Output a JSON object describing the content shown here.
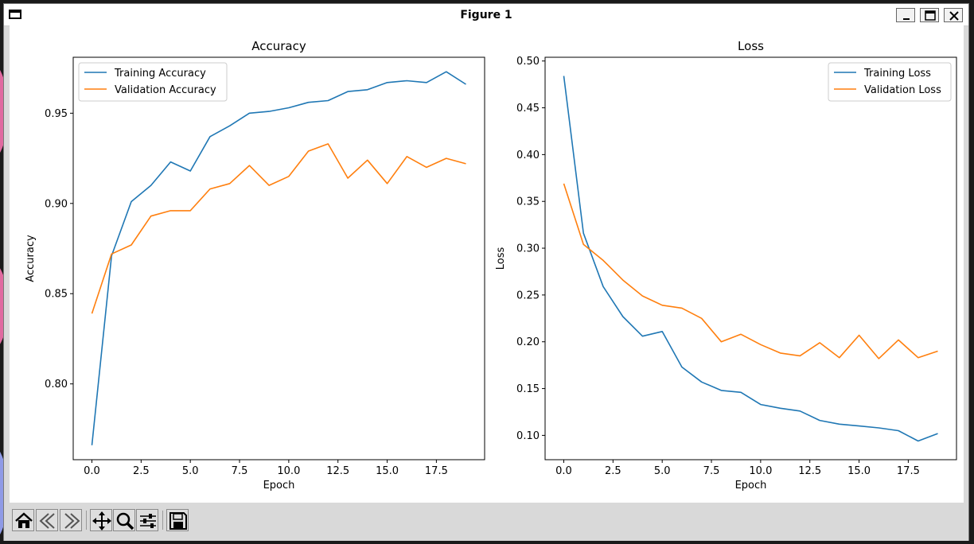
{
  "window": {
    "title": "Figure 1"
  },
  "toolbar": {
    "buttons": [
      {
        "name": "home-button",
        "icon": "home-icon"
      },
      {
        "name": "back-button",
        "icon": "back-arrow-icon"
      },
      {
        "name": "forward-button",
        "icon": "forward-arrow-icon"
      },
      {
        "name": "pan-button",
        "icon": "move-icon"
      },
      {
        "name": "zoom-button",
        "icon": "zoom-icon"
      },
      {
        "name": "configure-subplots-button",
        "icon": "sliders-icon"
      },
      {
        "name": "save-button",
        "icon": "floppy-disk-icon"
      }
    ]
  },
  "chart_data": [
    {
      "type": "line",
      "title": "Accuracy",
      "xlabel": "Epoch",
      "ylabel": "Accuracy",
      "xlim": [
        -0.95,
        19.95
      ],
      "ylim": [
        0.758,
        0.981
      ],
      "xticks": [
        0,
        2.5,
        5,
        7.5,
        10,
        12.5,
        15,
        17.5
      ],
      "xtick_labels": [
        "0.0",
        "2.5",
        "5.0",
        "7.5",
        "10.0",
        "12.5",
        "15.0",
        "17.5"
      ],
      "yticks": [
        0.8,
        0.85,
        0.9,
        0.95
      ],
      "ytick_labels": [
        "0.80",
        "0.85",
        "0.90",
        "0.95"
      ],
      "legend": "upper left",
      "grid": false,
      "x": [
        0,
        1,
        2,
        3,
        4,
        5,
        6,
        7,
        8,
        9,
        10,
        11,
        12,
        13,
        14,
        15,
        16,
        17,
        18,
        19
      ],
      "series": [
        {
          "name": "Training Accuracy",
          "color": "#1f77b4",
          "values": [
            0.766,
            0.871,
            0.901,
            0.91,
            0.923,
            0.918,
            0.937,
            0.943,
            0.95,
            0.951,
            0.953,
            0.956,
            0.957,
            0.962,
            0.963,
            0.967,
            0.968,
            0.967,
            0.973,
            0.966
          ]
        },
        {
          "name": "Validation Accuracy",
          "color": "#ff7f0e",
          "values": [
            0.839,
            0.872,
            0.877,
            0.893,
            0.896,
            0.896,
            0.908,
            0.911,
            0.921,
            0.91,
            0.915,
            0.929,
            0.933,
            0.914,
            0.924,
            0.911,
            0.926,
            0.92,
            0.925,
            0.922
          ]
        }
      ]
    },
    {
      "type": "line",
      "title": "Loss",
      "xlabel": "Epoch",
      "ylabel": "Loss",
      "xlim": [
        -0.95,
        19.95
      ],
      "ylim": [
        0.074,
        0.504
      ],
      "xticks": [
        0,
        2.5,
        5,
        7.5,
        10,
        12.5,
        15,
        17.5
      ],
      "xtick_labels": [
        "0.0",
        "2.5",
        "5.0",
        "7.5",
        "10.0",
        "12.5",
        "15.0",
        "17.5"
      ],
      "yticks": [
        0.1,
        0.15,
        0.2,
        0.25,
        0.3,
        0.35,
        0.4,
        0.45,
        0.5
      ],
      "ytick_labels": [
        "0.10",
        "0.15",
        "0.20",
        "0.25",
        "0.30",
        "0.35",
        "0.40",
        "0.45",
        "0.50"
      ],
      "legend": "upper right",
      "grid": false,
      "x": [
        0,
        1,
        2,
        3,
        4,
        5,
        6,
        7,
        8,
        9,
        10,
        11,
        12,
        13,
        14,
        15,
        16,
        17,
        18,
        19
      ],
      "series": [
        {
          "name": "Training Loss",
          "color": "#1f77b4",
          "values": [
            0.484,
            0.316,
            0.259,
            0.227,
            0.206,
            0.211,
            0.173,
            0.157,
            0.148,
            0.146,
            0.133,
            0.129,
            0.126,
            0.116,
            0.112,
            0.11,
            0.108,
            0.105,
            0.094,
            0.102
          ]
        },
        {
          "name": "Validation Loss",
          "color": "#ff7f0e",
          "values": [
            0.369,
            0.304,
            0.287,
            0.266,
            0.249,
            0.239,
            0.236,
            0.225,
            0.2,
            0.208,
            0.197,
            0.188,
            0.185,
            0.199,
            0.183,
            0.207,
            0.182,
            0.202,
            0.183,
            0.19
          ]
        }
      ]
    }
  ]
}
